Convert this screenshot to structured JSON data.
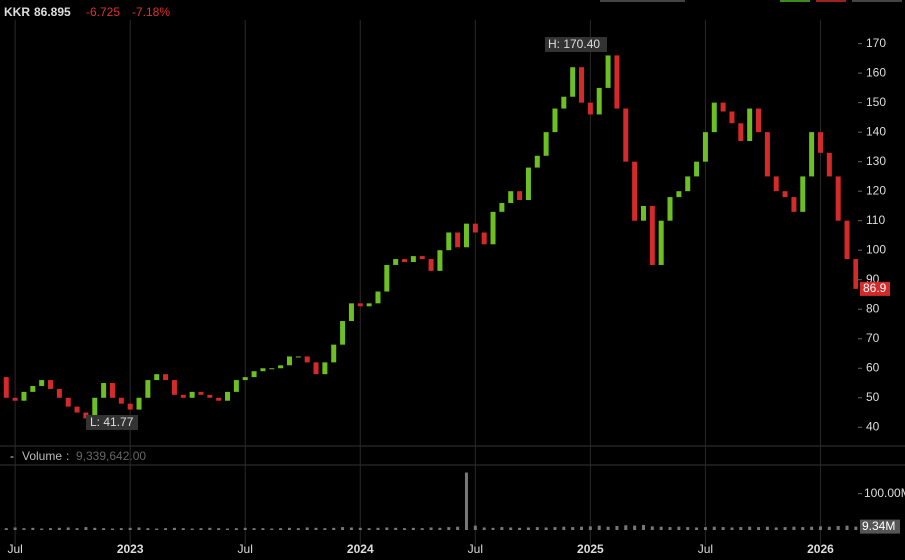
{
  "header": {
    "symbol": "KKR",
    "price": "86.895",
    "change": "-6.725",
    "change_pct": "-7.18%"
  },
  "chart_data": [
    {
      "type": "candlestick",
      "annotations": [
        "H: 170.40",
        "L: 41.77"
      ],
      "last_label": "86.9",
      "categories": [
        null,
        null,
        "Jul",
        null,
        null,
        null,
        null,
        null,
        null,
        null,
        null,
        null,
        null,
        null,
        null,
        "2023",
        null,
        null,
        null,
        null,
        null,
        null,
        null,
        null,
        null,
        null,
        null,
        null,
        "Jul",
        null,
        null,
        null,
        null,
        null,
        null,
        null,
        null,
        null,
        null,
        null,
        null,
        "2024",
        null,
        null,
        null,
        null,
        null,
        null,
        null,
        null,
        null,
        null,
        null,
        null,
        "Jul",
        null,
        null,
        null,
        null,
        null,
        null,
        null,
        null,
        null,
        null,
        null,
        null,
        "2025",
        null,
        null,
        null,
        null,
        null,
        null,
        null,
        null,
        null,
        null,
        null,
        null,
        "Jul",
        null,
        null,
        null,
        null,
        null,
        null,
        null,
        null,
        null,
        null,
        null,
        null,
        "2026",
        null,
        null,
        null,
        null
      ],
      "series": [
        {
          "name": "KKR",
          "up_color": "#6cc024",
          "down_color": "#d42a2a",
          "values": [
            57,
            50,
            49,
            52,
            54,
            56,
            53,
            50,
            47,
            45,
            43,
            50,
            55,
            50,
            48,
            46,
            50,
            56,
            58,
            56,
            51,
            50,
            52,
            51,
            50,
            49,
            52,
            56,
            57,
            59,
            60,
            60,
            61,
            64,
            64,
            62,
            58,
            62,
            68,
            76,
            82,
            81,
            82,
            86,
            95,
            97,
            96,
            98,
            97,
            93,
            100,
            106,
            101,
            109,
            106,
            102,
            113,
            116,
            120,
            117,
            128,
            132,
            140,
            148,
            152,
            162,
            150,
            146,
            155,
            166,
            148,
            130,
            110,
            115,
            95,
            110,
            118,
            120,
            125,
            130,
            140,
            150,
            147,
            143,
            137,
            148,
            140,
            125,
            120,
            118,
            113,
            125,
            140,
            133,
            125,
            110,
            97,
            86.895
          ]
        }
      ],
      "ylim": [
        34,
        178
      ],
      "yticks": [
        40,
        50,
        60,
        70,
        80,
        90,
        100,
        110,
        120,
        130,
        140,
        150,
        160,
        170
      ],
      "grid": true
    },
    {
      "type": "bar",
      "title": "Volume",
      "current": "9,339,642.00",
      "last_label": "9.34M",
      "color": "#777777",
      "values": [
        6,
        5,
        7,
        5,
        6,
        4,
        5,
        6,
        7,
        5,
        8,
        6,
        5,
        4,
        5,
        6,
        7,
        5,
        4,
        5,
        6,
        5,
        4,
        5,
        6,
        5,
        4,
        5,
        6,
        5,
        5,
        4,
        5,
        6,
        5,
        7,
        6,
        5,
        6,
        8,
        7,
        6,
        5,
        6,
        7,
        6,
        5,
        6,
        5,
        7,
        6,
        8,
        9,
        158,
        12,
        7,
        6,
        8,
        7,
        6,
        7,
        8,
        7,
        8,
        9,
        8,
        9,
        10,
        12,
        9,
        11,
        13,
        12,
        14,
        10,
        9,
        8,
        9,
        8,
        7,
        8,
        9,
        8,
        7,
        8,
        9,
        8,
        9,
        7,
        8,
        9,
        8,
        9,
        10,
        9,
        11,
        12,
        9.34
      ],
      "ylim": [
        0,
        165
      ],
      "yticks": [
        {
          "value": 100,
          "label": "100.00M"
        }
      ]
    }
  ]
}
